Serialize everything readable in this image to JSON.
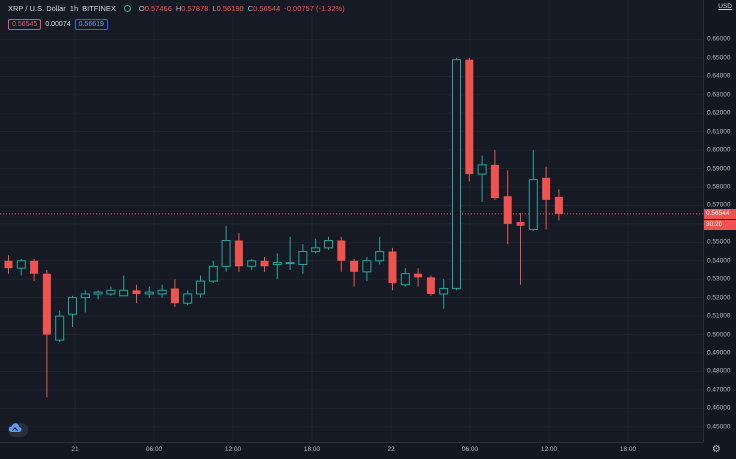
{
  "legend": {
    "symbol": "XRP / U.S. Dollar",
    "interval": "1h",
    "exchange": "BITFINEX",
    "o_key": "O",
    "o_val": "0.57466",
    "h_key": "H",
    "h_val": "0.57878",
    "l_key": "L",
    "l_val": "0.56190",
    "c_key": "C",
    "c_val": "0.56544",
    "change": "-0.00757 (-1.32%)"
  },
  "order": {
    "bid": "0.56545",
    "spread": "0.00074",
    "ask": "0.56619"
  },
  "currency": "USD",
  "last_price_label": "0.56544",
  "countdown_label": "30:20",
  "colors": {
    "up": "#26a69a",
    "down": "#ef5350",
    "background": "#161a25"
  },
  "chart_data": {
    "type": "candlestick",
    "ylim": [
      0.445,
      0.67
    ],
    "price_ticks": [
      "0.66000",
      "0.65000",
      "0.64000",
      "0.63000",
      "0.62000",
      "0.61000",
      "0.60000",
      "0.59000",
      "0.58000",
      "0.57000",
      "0.56000",
      "0.55000",
      "0.54000",
      "0.53000",
      "0.52000",
      "0.51000",
      "0.50000",
      "0.49000",
      "0.48000",
      "0.47000",
      "0.46000",
      "0.45000"
    ],
    "time_ticks": [
      "21",
      "06:00",
      "12:00",
      "18:00",
      "22",
      "06:00",
      "12:00",
      "18:00"
    ],
    "last_price": 0.56544,
    "candles": [
      {
        "o": 0.54,
        "h": 0.543,
        "l": 0.533,
        "c": 0.536
      },
      {
        "o": 0.536,
        "h": 0.541,
        "l": 0.532,
        "c": 0.54
      },
      {
        "o": 0.54,
        "h": 0.541,
        "l": 0.529,
        "c": 0.533
      },
      {
        "o": 0.533,
        "h": 0.535,
        "l": 0.466,
        "c": 0.5
      },
      {
        "o": 0.497,
        "h": 0.513,
        "l": 0.496,
        "c": 0.51
      },
      {
        "o": 0.511,
        "h": 0.521,
        "l": 0.504,
        "c": 0.52
      },
      {
        "o": 0.52,
        "h": 0.524,
        "l": 0.512,
        "c": 0.522
      },
      {
        "o": 0.522,
        "h": 0.524,
        "l": 0.519,
        "c": 0.523
      },
      {
        "o": 0.522,
        "h": 0.526,
        "l": 0.521,
        "c": 0.524
      },
      {
        "o": 0.521,
        "h": 0.532,
        "l": 0.521,
        "c": 0.524
      },
      {
        "o": 0.524,
        "h": 0.527,
        "l": 0.517,
        "c": 0.522
      },
      {
        "o": 0.522,
        "h": 0.526,
        "l": 0.52,
        "c": 0.523
      },
      {
        "o": 0.522,
        "h": 0.527,
        "l": 0.52,
        "c": 0.524
      },
      {
        "o": 0.525,
        "h": 0.53,
        "l": 0.515,
        "c": 0.517
      },
      {
        "o": 0.517,
        "h": 0.524,
        "l": 0.516,
        "c": 0.522
      },
      {
        "o": 0.522,
        "h": 0.532,
        "l": 0.52,
        "c": 0.529
      },
      {
        "o": 0.529,
        "h": 0.54,
        "l": 0.528,
        "c": 0.537
      },
      {
        "o": 0.537,
        "h": 0.559,
        "l": 0.534,
        "c": 0.551
      },
      {
        "o": 0.551,
        "h": 0.555,
        "l": 0.534,
        "c": 0.537
      },
      {
        "o": 0.537,
        "h": 0.541,
        "l": 0.535,
        "c": 0.54
      },
      {
        "o": 0.54,
        "h": 0.542,
        "l": 0.534,
        "c": 0.537
      },
      {
        "o": 0.538,
        "h": 0.544,
        "l": 0.53,
        "c": 0.539
      },
      {
        "o": 0.539,
        "h": 0.553,
        "l": 0.535,
        "c": 0.539
      },
      {
        "o": 0.538,
        "h": 0.549,
        "l": 0.533,
        "c": 0.545
      },
      {
        "o": 0.545,
        "h": 0.552,
        "l": 0.544,
        "c": 0.547
      },
      {
        "o": 0.547,
        "h": 0.553,
        "l": 0.546,
        "c": 0.551
      },
      {
        "o": 0.551,
        "h": 0.553,
        "l": 0.534,
        "c": 0.54
      },
      {
        "o": 0.54,
        "h": 0.541,
        "l": 0.526,
        "c": 0.534
      },
      {
        "o": 0.534,
        "h": 0.542,
        "l": 0.529,
        "c": 0.54
      },
      {
        "o": 0.54,
        "h": 0.553,
        "l": 0.538,
        "c": 0.545
      },
      {
        "o": 0.545,
        "h": 0.547,
        "l": 0.524,
        "c": 0.528
      },
      {
        "o": 0.527,
        "h": 0.536,
        "l": 0.526,
        "c": 0.533
      },
      {
        "o": 0.533,
        "h": 0.536,
        "l": 0.526,
        "c": 0.531
      },
      {
        "o": 0.531,
        "h": 0.532,
        "l": 0.521,
        "c": 0.522
      },
      {
        "o": 0.522,
        "h": 0.53,
        "l": 0.514,
        "c": 0.525
      },
      {
        "o": 0.525,
        "h": 0.65,
        "l": 0.524,
        "c": 0.649
      },
      {
        "o": 0.649,
        "h": 0.65,
        "l": 0.583,
        "c": 0.587
      },
      {
        "o": 0.587,
        "h": 0.597,
        "l": 0.572,
        "c": 0.592
      },
      {
        "o": 0.592,
        "h": 0.6,
        "l": 0.573,
        "c": 0.574
      },
      {
        "o": 0.575,
        "h": 0.589,
        "l": 0.549,
        "c": 0.56
      },
      {
        "o": 0.561,
        "h": 0.566,
        "l": 0.527,
        "c": 0.559
      },
      {
        "o": 0.557,
        "h": 0.6,
        "l": 0.556,
        "c": 0.584
      },
      {
        "o": 0.585,
        "h": 0.591,
        "l": 0.557,
        "c": 0.573
      },
      {
        "o": 0.57466,
        "h": 0.57878,
        "l": 0.5619,
        "c": 0.56544
      }
    ]
  },
  "icons": {
    "logo": "tradingview-logo-icon",
    "settings": "gear-icon",
    "status": "market-open-dot-icon"
  }
}
